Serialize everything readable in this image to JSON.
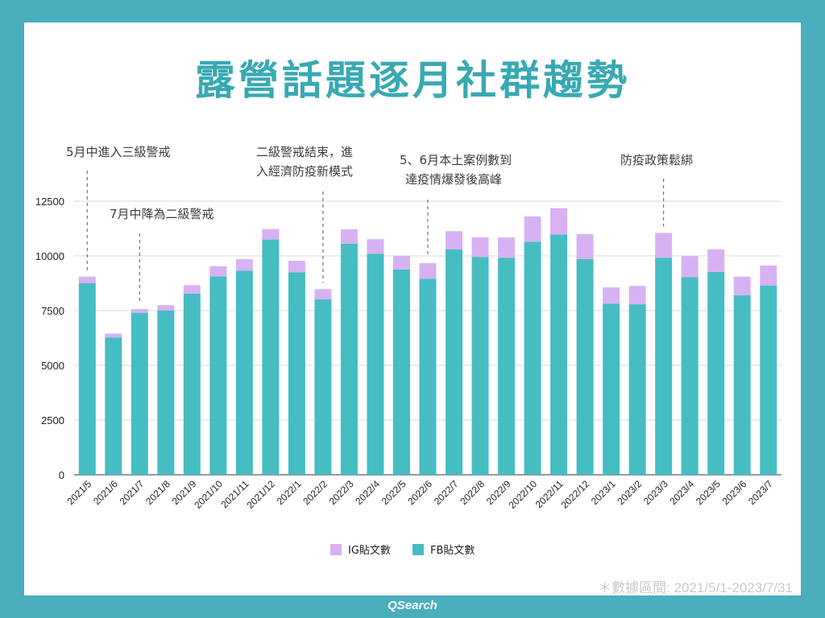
{
  "page": {
    "title": "露營話題逐月社群趨勢",
    "source_note": "＊數據區間: 2021/5/1-2023/7/31",
    "brand": "QSearch"
  },
  "colors": {
    "background": "#4aaebd",
    "title": "#38a9b3",
    "fb": "#45bdc3",
    "ig": "#d7b2f3"
  },
  "annotations": [
    {
      "text": "5月中進入三級警戒",
      "category": "2021/5"
    },
    {
      "text": "7月中降為二級警戒",
      "category": "2021/7"
    },
    {
      "text": "二級警戒結束，進",
      "text2": "入經濟防疫新模式",
      "category": "2022/2"
    },
    {
      "text": "5、6月本土案例數到",
      "text2": "達疫情爆發後高峰",
      "category": "2022/6"
    },
    {
      "text": "防疫政策鬆綁",
      "category": "2023/3"
    }
  ],
  "chart_data": {
    "type": "bar",
    "stacked": true,
    "categories": [
      "2021/5",
      "2021/6",
      "2021/7",
      "2021/8",
      "2021/9",
      "2021/10",
      "2021/11",
      "2021/12",
      "2022/1",
      "2022/2",
      "2022/3",
      "2022/4",
      "2022/5",
      "2022/6",
      "2022/7",
      "2022/8",
      "2022/9",
      "2022/10",
      "2022/11",
      "2022/12",
      "2023/1",
      "2023/2",
      "2023/3",
      "2023/4",
      "2023/5",
      "2023/6",
      "2023/7"
    ],
    "series": [
      {
        "name": "FB貼文數",
        "color": "#45bdc3",
        "values": [
          8750,
          6270,
          7400,
          7500,
          8280,
          9060,
          9320,
          10750,
          9250,
          8020,
          10560,
          10100,
          9380,
          8950,
          10300,
          9950,
          9920,
          10650,
          10980,
          9860,
          7820,
          7790,
          9920,
          9030,
          9270,
          8200,
          8650
        ]
      },
      {
        "name": "IG貼文數",
        "color": "#d7b2f3",
        "values": [
          300,
          180,
          170,
          250,
          380,
          470,
          530,
          480,
          530,
          460,
          660,
          660,
          620,
          720,
          830,
          900,
          920,
          1150,
          1200,
          1140,
          740,
          840,
          1130,
          960,
          1030,
          850,
          910
        ]
      }
    ],
    "ylim": [
      0,
      12500
    ],
    "yticks": [
      0,
      2500,
      5000,
      7500,
      10000,
      12500
    ],
    "grid": true,
    "legend_position": "bottom-center"
  }
}
